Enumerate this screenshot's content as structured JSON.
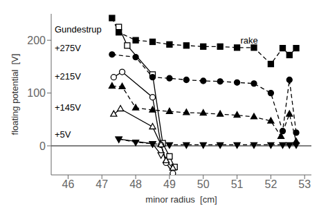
{
  "chart_data": {
    "type": "line",
    "xlabel": "minor radius  [cm]",
    "ylabel": "floating potential  [V]",
    "xlim": [
      45.5,
      53.2
    ],
    "ylim": [
      -55,
      250
    ],
    "xticks": [
      46,
      47,
      48,
      49,
      50,
      51,
      52,
      53
    ],
    "yticks": [
      0,
      100,
      200
    ],
    "grid": false,
    "reference_lines": [
      {
        "y": 0,
        "color": "#000000"
      }
    ],
    "series": [
      {
        "x": [
          47.5,
          47.75,
          48.5,
          48.8,
          49.0,
          49.15
        ],
        "values": [
          225,
          190,
          135,
          5,
          -20,
          -40
        ],
        "color": "#000000",
        "marker": "open-square",
        "line_style": "solid"
      },
      {
        "x": [
          47.35,
          47.6,
          48.5,
          48.75,
          48.9,
          49.1
        ],
        "values": [
          130,
          140,
          92,
          2,
          -32,
          -52
        ],
        "color": "#000000",
        "marker": "open-circle",
        "line_style": "solid"
      },
      {
        "x": [
          47.35,
          47.55,
          48.5,
          48.75,
          48.9,
          49.1
        ],
        "values": [
          60,
          70,
          36,
          2,
          -28,
          -42
        ],
        "color": "#000000",
        "marker": "open-triangle-up",
        "line_style": "solid"
      },
      {
        "x": [
          47.5,
          48.5,
          48.75
        ],
        "values": [
          13,
          4,
          -17
        ],
        "color": "#000000",
        "marker": "open-triangle-down",
        "line_style": "solid"
      },
      {
        "x": [
          47.3,
          47.5,
          48.0,
          48.5,
          49.0,
          49.5,
          50.0,
          50.5,
          51.0,
          51.5,
          52.0,
          52.35,
          52.55,
          52.75
        ],
        "values": [
          242,
          215,
          200,
          197,
          192,
          190,
          188,
          188,
          186,
          186,
          155,
          185,
          172,
          185
        ],
        "color": "#000000",
        "marker": "square",
        "line_style": "dashed"
      },
      {
        "x": [
          47.3,
          48.0,
          48.5,
          49.0,
          49.5,
          50.0,
          50.5,
          51.0,
          51.5,
          52.0,
          52.35,
          52.55,
          52.75
        ],
        "values": [
          173,
          168,
          130,
          128,
          125,
          123,
          122,
          120,
          118,
          100,
          28,
          125,
          25
        ],
        "color": "#000000",
        "marker": "circle",
        "line_style": "dashed"
      },
      {
        "x": [
          47.3,
          47.6,
          48.0,
          48.5,
          49.0,
          49.5,
          50.0,
          50.5,
          51.0,
          51.5,
          52.0,
          52.3,
          52.55,
          52.75
        ],
        "values": [
          113,
          112,
          72,
          68,
          65,
          63,
          62,
          60,
          58,
          55,
          47,
          18,
          60,
          8
        ],
        "color": "#000000",
        "marker": "triangle-up",
        "line_style": "dashed"
      },
      {
        "x": [
          47.5,
          48.0,
          48.5,
          49.0,
          49.5,
          50.0,
          50.5,
          51.0,
          51.5,
          52.0,
          52.35,
          52.55,
          52.75
        ],
        "values": [
          13,
          7,
          4,
          2,
          2,
          2,
          2,
          2,
          2,
          2,
          2,
          2,
          2
        ],
        "color": "#000000",
        "marker": "triangle-down",
        "line_style": "dashed"
      }
    ],
    "annotations": [
      {
        "text": "Gundestrup",
        "x": 45.6,
        "y": 220
      },
      {
        "text": "+275V",
        "x": 45.6,
        "y": 185
      },
      {
        "text": "+215V",
        "x": 45.6,
        "y": 132
      },
      {
        "text": "+145V",
        "x": 45.6,
        "y": 72
      },
      {
        "text": "+5V",
        "x": 45.6,
        "y": 22
      },
      {
        "text": "rake",
        "x": 51.1,
        "y": 200
      }
    ]
  }
}
